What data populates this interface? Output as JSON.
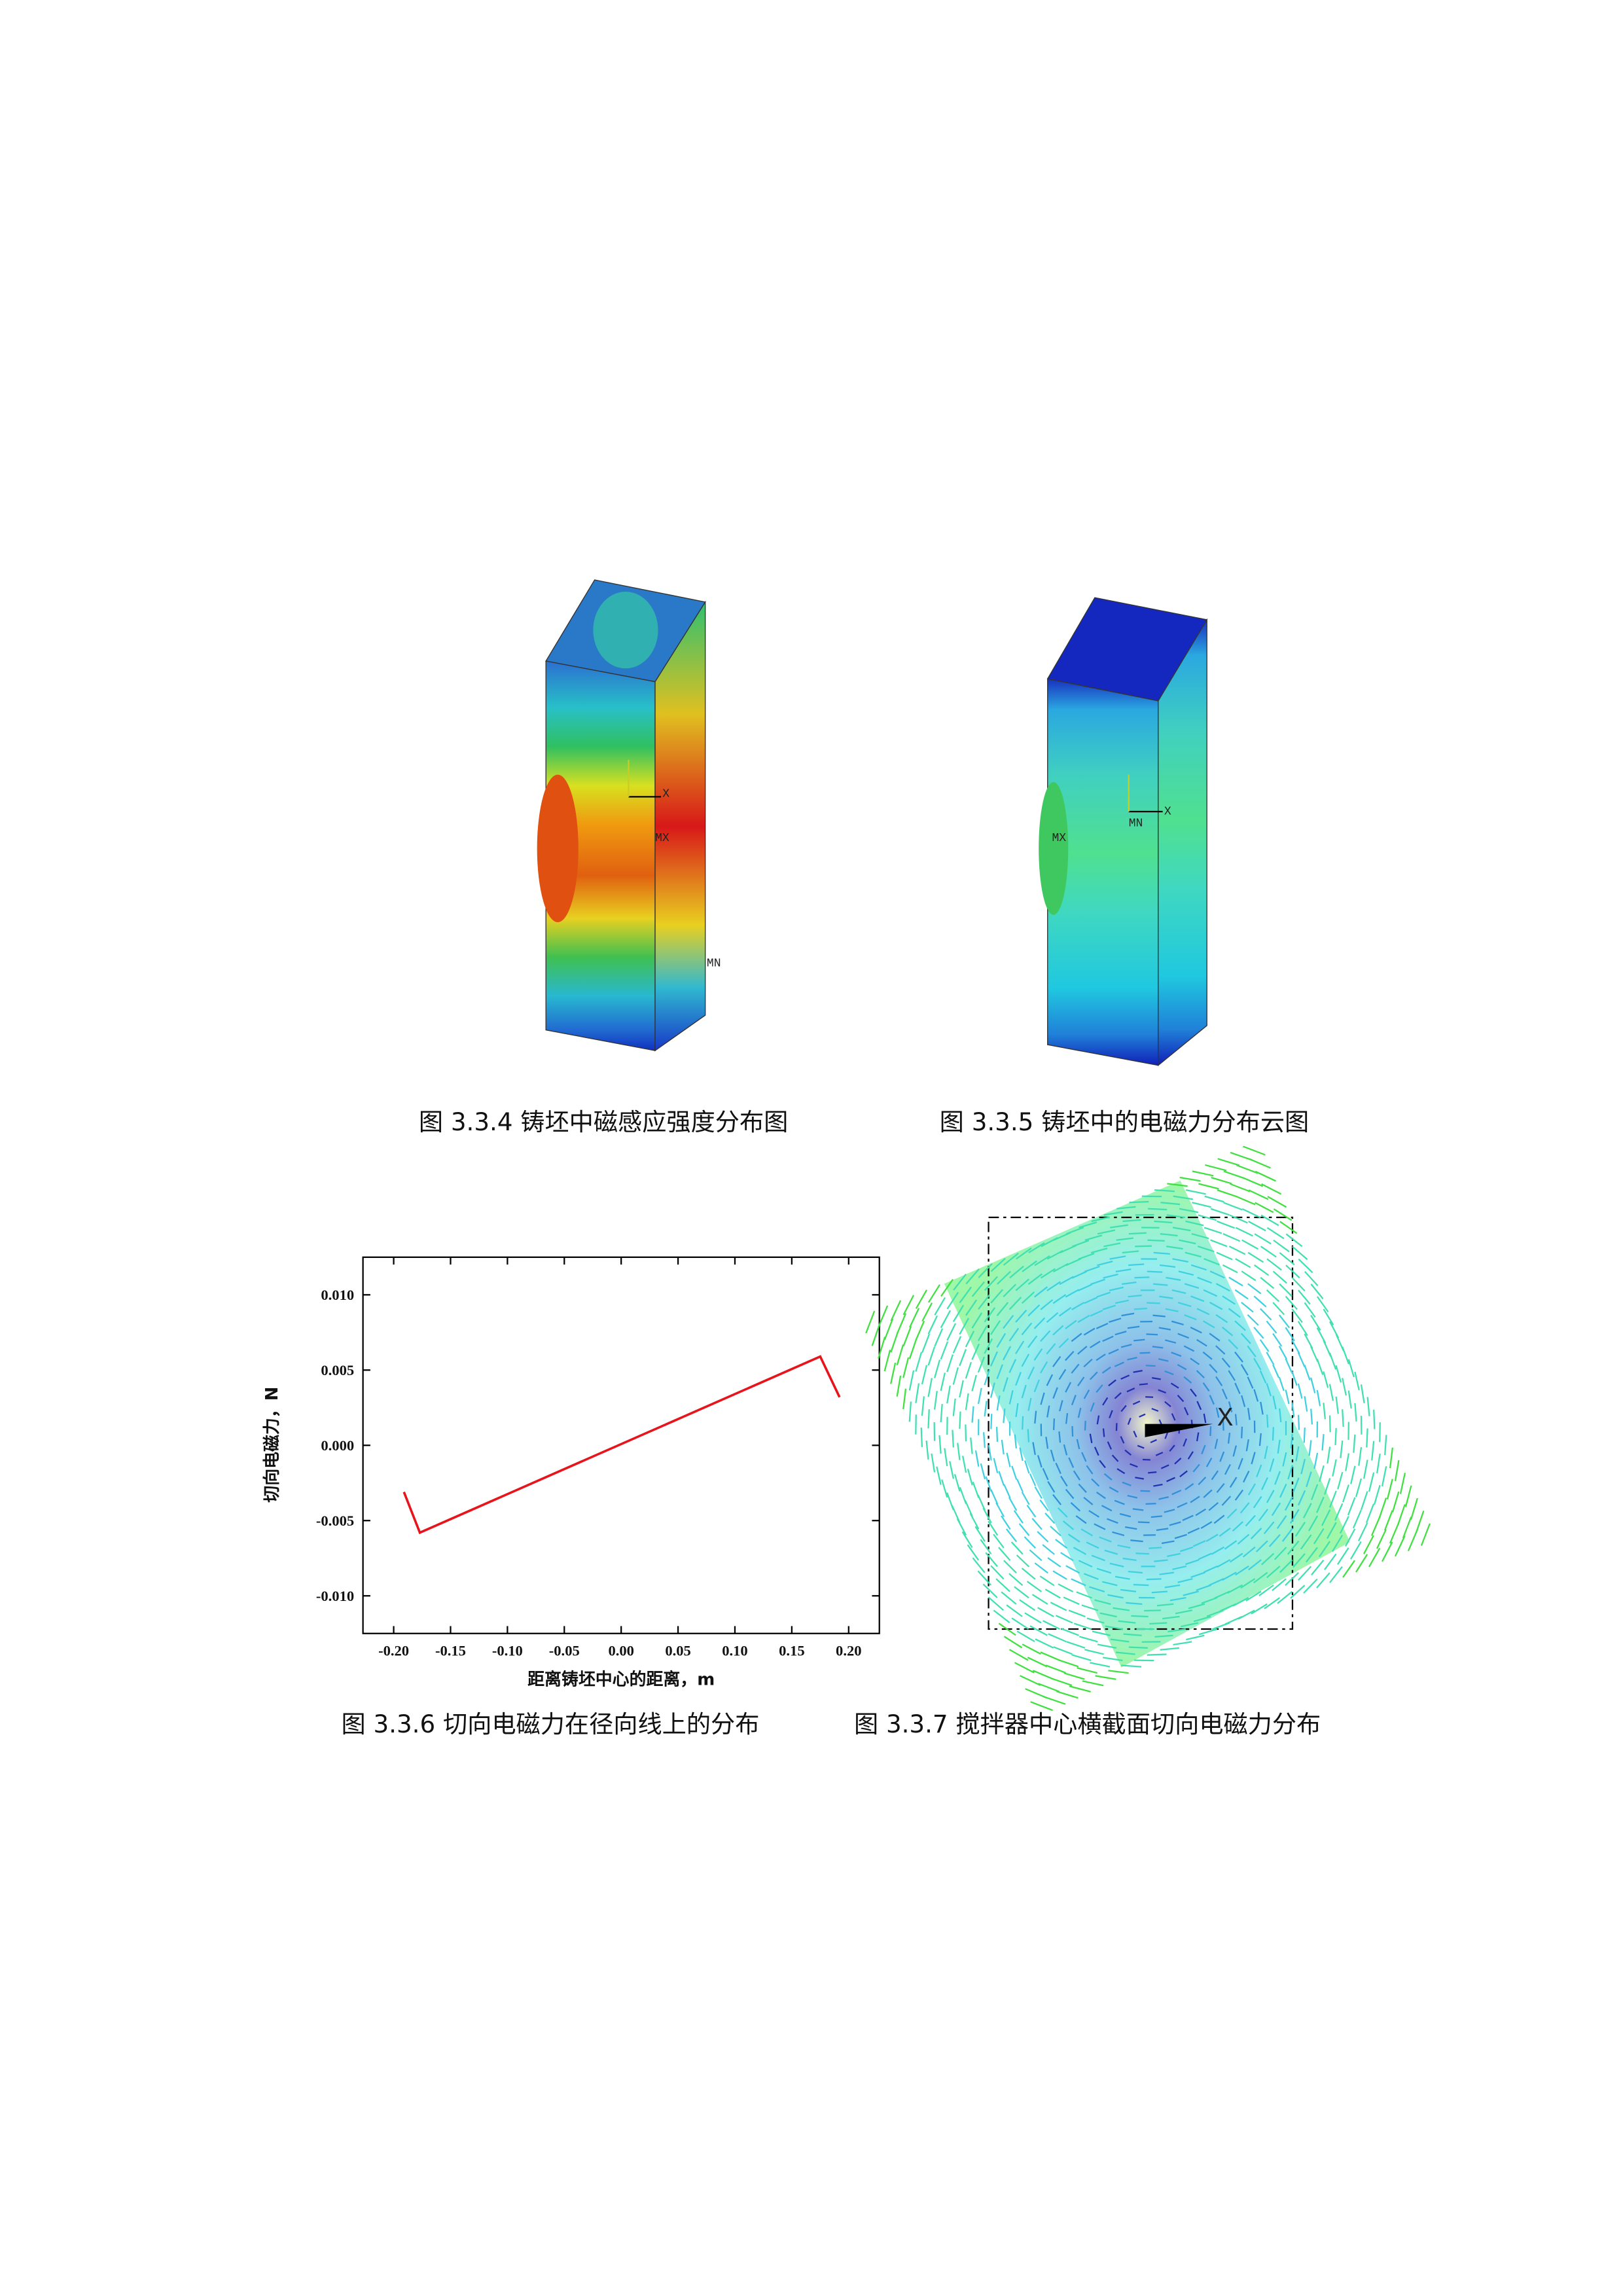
{
  "figures": [
    {
      "caption": "图 3.3.4 铸坯中磁感应强度分布图",
      "labels": [
        "X",
        "MX",
        "MN"
      ]
    },
    {
      "caption": "图 3.3.5 铸坯中的电磁力分布云图",
      "labels": [
        "X",
        "MX",
        "MN"
      ]
    },
    {
      "caption": "图 3.3.6 切向电磁力在径向线上的分布"
    },
    {
      "caption": "图 3.3.7 搅拌器中心横截面切向电磁力分布",
      "labels": [
        "X"
      ]
    }
  ],
  "chart_data": {
    "type": "line",
    "color": "#e8141c",
    "xlabel": "距离铸坯中心的距离，m",
    "ylabel": "切向电磁力，N",
    "x": [
      -0.191,
      -0.177,
      0.175,
      0.192
    ],
    "values": [
      -0.0031,
      -0.0058,
      0.0059,
      0.0032
    ],
    "xlim": [
      -0.227,
      0.227
    ],
    "ylim": [
      -0.0125,
      0.0125
    ],
    "xticks": [
      {
        "value": -0.2,
        "label": "-0.20"
      },
      {
        "value": -0.15,
        "label": "-0.15"
      },
      {
        "value": -0.1,
        "label": "-0.10"
      },
      {
        "value": -0.05,
        "label": "-0.05"
      },
      {
        "value": 0,
        "label": "0.00"
      },
      {
        "value": 0.05,
        "label": "0.05"
      },
      {
        "value": 0.1,
        "label": "0.10"
      },
      {
        "value": 0.15,
        "label": "0.15"
      },
      {
        "value": 0.2,
        "label": "0.20"
      }
    ],
    "yticks": [
      {
        "value": -0.01,
        "label": "-0.010"
      },
      {
        "value": -0.005,
        "label": "-0.005"
      },
      {
        "value": 0,
        "label": "0.000"
      },
      {
        "value": 0.005,
        "label": "0.005"
      },
      {
        "value": 0.01,
        "label": "0.010"
      }
    ]
  }
}
